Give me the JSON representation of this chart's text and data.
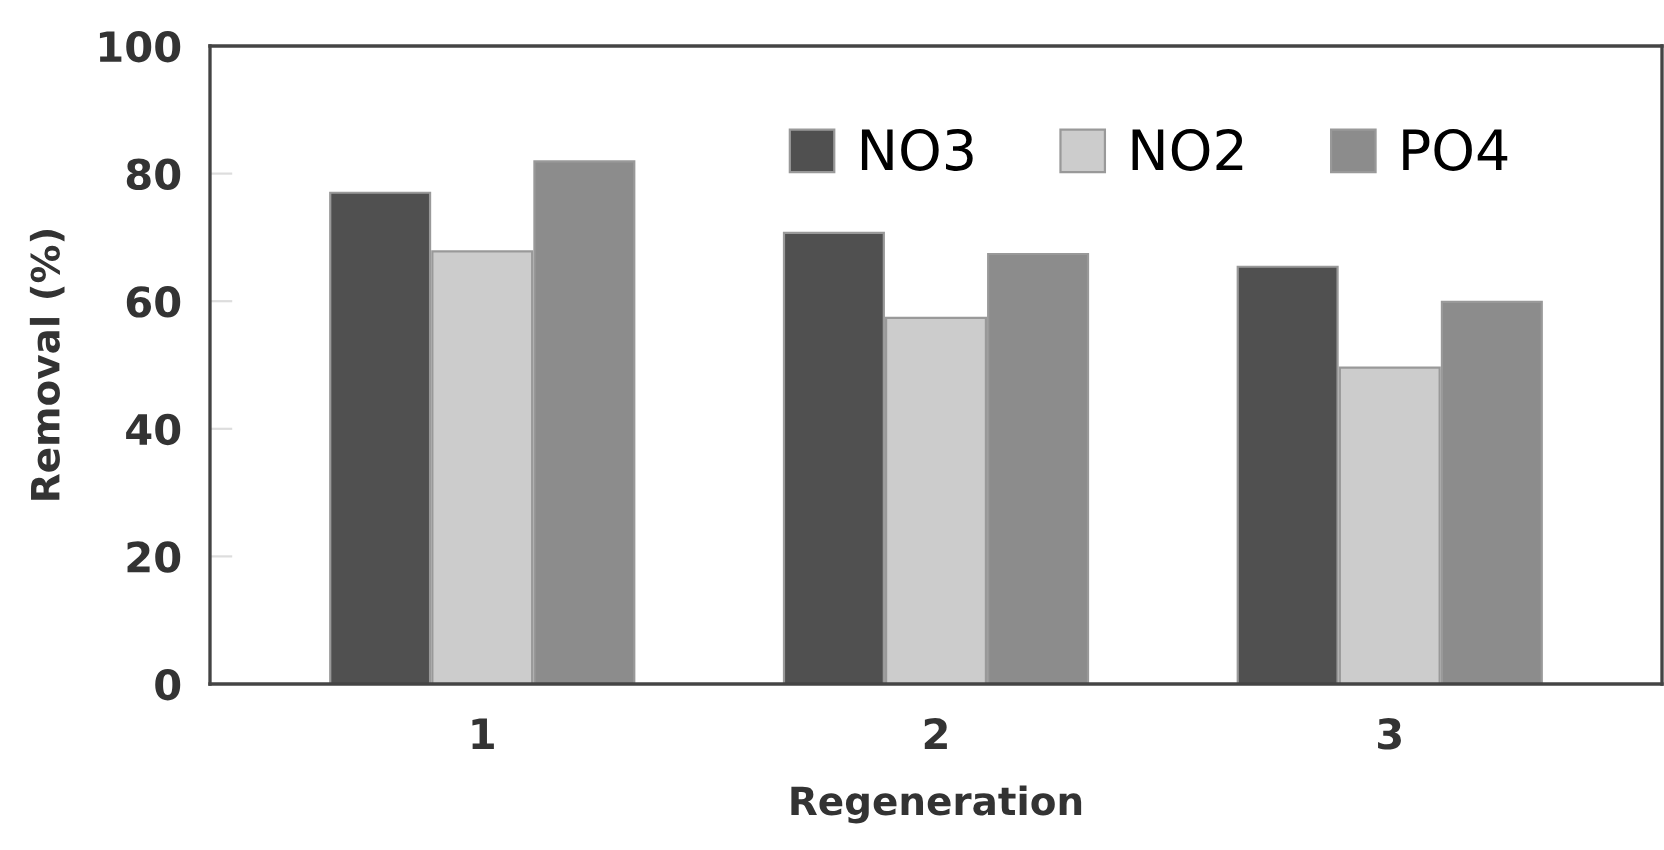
{
  "chart_data": {
    "type": "bar",
    "xlabel": "Regeneration",
    "ylabel": "Removal (%)",
    "categories": [
      "1",
      "2",
      "3"
    ],
    "series": [
      {
        "name": "NO3",
        "color": "#505050",
        "values": [
          77.0,
          70.7,
          65.4
        ]
      },
      {
        "name": "NO2",
        "color": "#cccccc",
        "values": [
          67.8,
          57.4,
          49.6
        ]
      },
      {
        "name": "PO4",
        "color": "#8c8c8c",
        "values": [
          81.9,
          67.4,
          59.9
        ]
      }
    ],
    "ylim": [
      0,
      100
    ],
    "yticks": [
      0,
      20,
      40,
      60,
      80,
      100
    ],
    "grid": false,
    "legend": "top right"
  }
}
